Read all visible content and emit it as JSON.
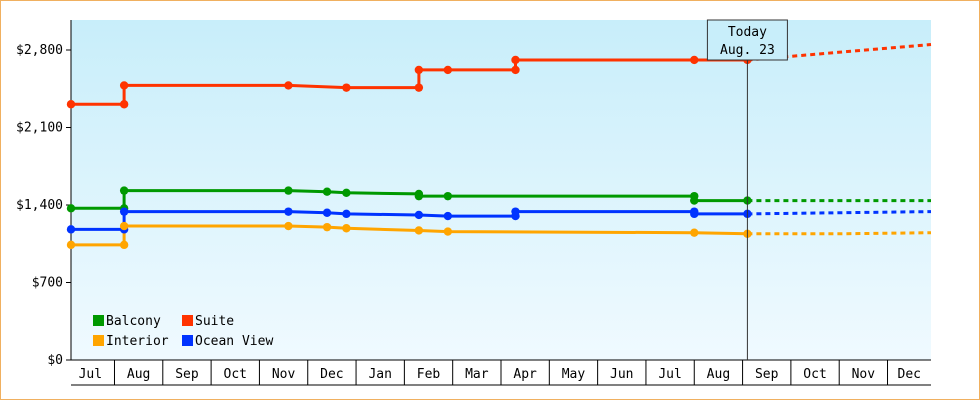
{
  "chart_data": {
    "type": "line",
    "title": "",
    "xlabel": "",
    "ylabel": "",
    "ylim": [
      0,
      2800
    ],
    "y_ticks": [
      {
        "value": 0,
        "label": "$0"
      },
      {
        "value": 700,
        "label": "$700"
      },
      {
        "value": 1400,
        "label": "$1,400"
      },
      {
        "value": 2100,
        "label": "$2,100"
      },
      {
        "value": 2800,
        "label": "$2,800"
      }
    ],
    "x_ticks": [
      "Jul",
      "Aug",
      "Sep",
      "Oct",
      "Nov",
      "Dec",
      "Jan",
      "Feb",
      "Mar",
      "Apr",
      "May",
      "Jun",
      "Jul",
      "Aug",
      "Sep",
      "Oct",
      "Nov",
      "Dec"
    ],
    "x_range": [
      -0.4,
      17.4
    ],
    "today": {
      "line1": "Today",
      "line2": "Aug. 23",
      "x": 13.6
    },
    "legend": {
      "position": "bottom-left"
    },
    "series": [
      {
        "name": "Suite",
        "color": "#ff3300",
        "points": [
          [
            -0.4,
            2310
          ],
          [
            0.7,
            2310
          ],
          [
            0.7,
            2480
          ],
          [
            4.1,
            2480
          ],
          [
            5.3,
            2460
          ],
          [
            6.8,
            2460
          ],
          [
            6.8,
            2620
          ],
          [
            7.4,
            2620
          ],
          [
            8.8,
            2620
          ],
          [
            8.8,
            2710
          ],
          [
            12.5,
            2710
          ],
          [
            13.6,
            2710
          ]
        ],
        "markers": [
          [
            -0.4,
            2310
          ],
          [
            0.7,
            2310
          ],
          [
            0.7,
            2480
          ],
          [
            4.1,
            2480
          ],
          [
            5.3,
            2460
          ],
          [
            6.8,
            2460
          ],
          [
            6.8,
            2620
          ],
          [
            7.4,
            2620
          ],
          [
            8.8,
            2620
          ],
          [
            8.8,
            2710
          ],
          [
            12.5,
            2710
          ],
          [
            13.6,
            2710
          ]
        ],
        "forecast": [
          [
            13.6,
            2710
          ],
          [
            17.4,
            2850
          ]
        ]
      },
      {
        "name": "Balcony",
        "color": "#009900",
        "points": [
          [
            -0.4,
            1370
          ],
          [
            0.7,
            1370
          ],
          [
            0.7,
            1530
          ],
          [
            4.1,
            1530
          ],
          [
            4.9,
            1520
          ],
          [
            5.3,
            1510
          ],
          [
            6.8,
            1500
          ],
          [
            6.8,
            1480
          ],
          [
            7.4,
            1480
          ],
          [
            12.5,
            1480
          ],
          [
            12.5,
            1440
          ],
          [
            13.6,
            1440
          ]
        ],
        "markers": [
          [
            -0.4,
            1370
          ],
          [
            0.7,
            1370
          ],
          [
            0.7,
            1530
          ],
          [
            4.1,
            1530
          ],
          [
            4.9,
            1520
          ],
          [
            5.3,
            1510
          ],
          [
            6.8,
            1500
          ],
          [
            6.8,
            1480
          ],
          [
            7.4,
            1480
          ],
          [
            12.5,
            1480
          ],
          [
            12.5,
            1440
          ],
          [
            13.6,
            1440
          ]
        ],
        "forecast": [
          [
            13.6,
            1440
          ],
          [
            17.4,
            1440
          ]
        ]
      },
      {
        "name": "Ocean View",
        "color": "#0033ff",
        "points": [
          [
            -0.4,
            1180
          ],
          [
            0.7,
            1180
          ],
          [
            0.7,
            1340
          ],
          [
            4.1,
            1340
          ],
          [
            4.9,
            1330
          ],
          [
            5.3,
            1320
          ],
          [
            6.8,
            1310
          ],
          [
            7.4,
            1300
          ],
          [
            8.8,
            1300
          ],
          [
            8.8,
            1340
          ],
          [
            12.5,
            1340
          ],
          [
            12.5,
            1320
          ],
          [
            13.6,
            1320
          ]
        ],
        "markers": [
          [
            -0.4,
            1180
          ],
          [
            0.7,
            1180
          ],
          [
            0.7,
            1340
          ],
          [
            4.1,
            1340
          ],
          [
            4.9,
            1330
          ],
          [
            5.3,
            1320
          ],
          [
            6.8,
            1310
          ],
          [
            7.4,
            1300
          ],
          [
            8.8,
            1300
          ],
          [
            8.8,
            1340
          ],
          [
            12.5,
            1340
          ],
          [
            12.5,
            1320
          ],
          [
            13.6,
            1320
          ]
        ],
        "forecast": [
          [
            13.6,
            1320
          ],
          [
            17.4,
            1340
          ]
        ]
      },
      {
        "name": "Interior",
        "color": "#ffa500",
        "points": [
          [
            -0.4,
            1040
          ],
          [
            0.7,
            1040
          ],
          [
            0.7,
            1210
          ],
          [
            4.1,
            1210
          ],
          [
            4.9,
            1200
          ],
          [
            5.3,
            1190
          ],
          [
            6.8,
            1170
          ],
          [
            7.4,
            1160
          ],
          [
            12.5,
            1150
          ],
          [
            13.6,
            1140
          ]
        ],
        "markers": [
          [
            -0.4,
            1040
          ],
          [
            0.7,
            1040
          ],
          [
            0.7,
            1210
          ],
          [
            4.1,
            1210
          ],
          [
            4.9,
            1200
          ],
          [
            5.3,
            1190
          ],
          [
            6.8,
            1170
          ],
          [
            7.4,
            1160
          ],
          [
            12.5,
            1150
          ],
          [
            13.6,
            1140
          ]
        ],
        "forecast": [
          [
            13.6,
            1140
          ],
          [
            15.5,
            1140
          ],
          [
            17.4,
            1150
          ]
        ]
      }
    ],
    "legend_order": [
      "Balcony",
      "Suite",
      "Interior",
      "Ocean View"
    ]
  }
}
